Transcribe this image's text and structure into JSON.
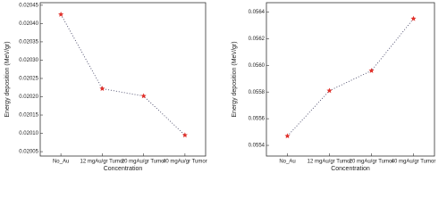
{
  "chart_data": [
    {
      "type": "line",
      "categories": [
        "No_Au",
        "12 mgAu/gr Tumor",
        "20 mgAu/gr Tumor",
        "40 mgAu/gr Tumor"
      ],
      "values": [
        0.020425,
        0.020222,
        0.020202,
        0.020095
      ],
      "color": "#e0302a",
      "line_color": "#4a4a6a",
      "x_label": "Concentration",
      "y_label": "Energy deposition (MeV/gr)",
      "ylim": [
        0.020038,
        0.020457
      ],
      "yticks": [
        0.02045,
        {
          "value": 0.0204,
          "label": "0.02040"
        },
        0.02035,
        {
          "value": 0.0203,
          "label": "0.02030"
        },
        0.02025,
        {
          "value": 0.0202,
          "label": "0.02020"
        },
        0.02015,
        {
          "value": 0.0201,
          "label": "0.02010"
        },
        0.02005
      ]
    },
    {
      "type": "line",
      "categories": [
        "No_Au",
        "12 mgAu/gr Tumor",
        "20 mgAu/gr Tumor",
        "40 mgAu/gr Tumor"
      ],
      "values": [
        0.05547,
        0.05581,
        0.05596,
        0.05635
      ],
      "color": "#e0302a",
      "line_color": "#4a4a6a",
      "x_label": "Concentration",
      "y_label": "Energy deposition (MeV/gr)",
      "ylim": [
        0.05532,
        0.05647
      ],
      "yticks": [
        0.0554,
        0.0556,
        0.0558,
        {
          "value": 0.056,
          "label": "0.0560"
        },
        0.0562,
        0.0564
      ]
    }
  ]
}
